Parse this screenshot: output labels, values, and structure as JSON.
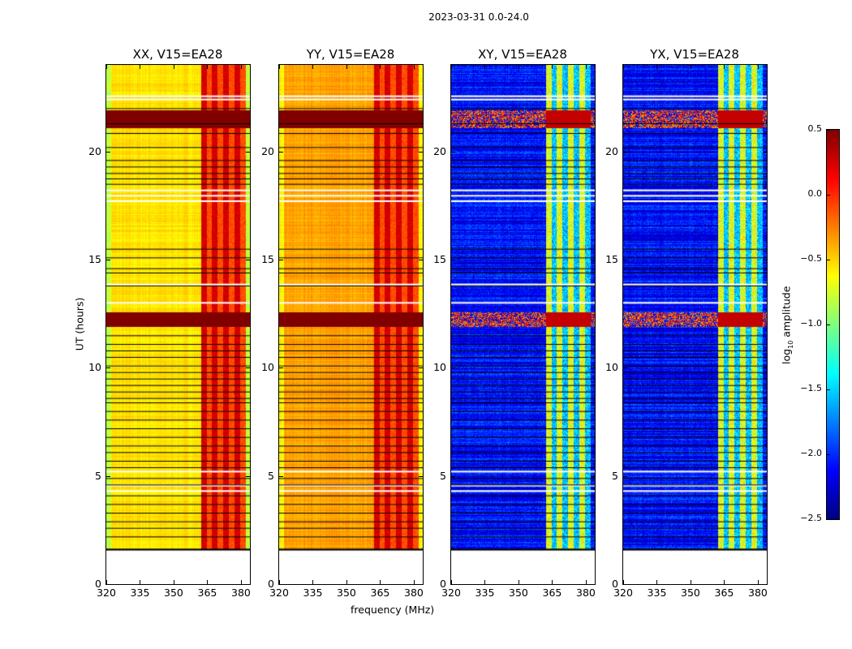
{
  "chart_data": {
    "type": "heatmap",
    "title": "2023-03-31 0.0-24.0",
    "xlabel": "frequency (MHz)",
    "ylabel": "UT (hours)",
    "xlim": [
      320,
      384
    ],
    "ylim": [
      0,
      24
    ],
    "xticks": [
      "320",
      "335",
      "350",
      "365",
      "380"
    ],
    "xtick_values": [
      320,
      335,
      350,
      365,
      380
    ],
    "yticks": [
      "0",
      "5",
      "10",
      "15",
      "20"
    ],
    "ytick_values": [
      0,
      5,
      10,
      15,
      20
    ],
    "colorbar": {
      "label": "log10 amplitude",
      "label_main": "log",
      "label_sub": "10",
      "label_rest": " amplitude",
      "range": [
        -2.5,
        0.5
      ],
      "ticks": [
        "0.5",
        "0.0",
        "−0.5",
        "−1.0",
        "−1.5",
        "−2.0",
        "−2.5"
      ],
      "tick_values": [
        0.5,
        0.0,
        -0.5,
        -1.0,
        -1.5,
        -2.0,
        -2.5
      ],
      "colormap": "jet"
    },
    "data_start_hour": 1.6,
    "data_end_hour": 24.0,
    "rfi_band_mhz": [
      362,
      382
    ],
    "high_amplitude_intervals_hours": [
      [
        21.1,
        21.9
      ],
      [
        11.9,
        12.6
      ]
    ],
    "flagged_lines_hours": [
      22.0,
      21.3,
      20.85,
      20.2,
      19.6,
      19.3,
      19.0,
      18.75,
      18.5,
      15.5,
      15.1,
      14.6,
      14.4,
      13.8,
      11.5,
      11.1,
      10.8,
      10.5,
      10.1,
      9.8,
      9.5,
      9.2,
      8.9,
      8.6,
      8.4,
      8.0,
      7.6,
      7.2,
      6.8,
      6.4,
      6.1,
      5.7,
      5.4,
      4.9,
      4.6,
      4.1,
      3.7,
      3.3,
      2.9,
      2.6,
      2.2,
      1.6
    ],
    "gap_lines_hours": [
      22.55,
      22.4,
      18.2,
      17.95,
      17.7,
      13.85,
      13.0,
      5.2,
      4.55,
      4.3
    ],
    "panels": [
      {
        "title": "XX, V15=EA28",
        "baseline_log_amp": -0.55,
        "rfi_log_amp": 0.15,
        "high_log_amp": 0.5
      },
      {
        "title": "YY, V15=EA28",
        "baseline_log_amp": -0.35,
        "rfi_log_amp": 0.15,
        "high_log_amp": 0.5
      },
      {
        "title": "XY, V15=EA28",
        "baseline_log_amp": -2.1,
        "rfi_log_amp": -0.8,
        "high_log_amp": 0.3
      },
      {
        "title": "YX, V15=EA28",
        "baseline_log_amp": -2.1,
        "rfi_log_amp": -0.8,
        "high_log_amp": 0.3
      }
    ]
  }
}
